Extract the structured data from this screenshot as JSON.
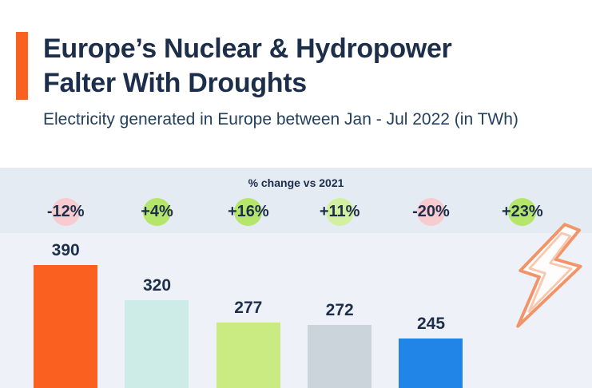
{
  "header": {
    "title_line1": "Europe’s Nuclear & Hydropower",
    "title_line2": "Falter With Droughts",
    "subtitle": "Electricity generated in Europe between Jan - Jul 2022 (in TWh)"
  },
  "colors": {
    "accent_orange": "#fa6121",
    "title_navy": "#1d2e4a",
    "band_bg": "#e5ebf3",
    "chart_bg": "#eef2f8"
  },
  "chart_data": {
    "type": "bar",
    "title": "Europe’s Nuclear & Hydropower Falter With Droughts",
    "subtitle": "Electricity generated in Europe between Jan - Jul 2022 (in TWh)",
    "unit": "TWh",
    "pct_band_label": "% change vs 2021",
    "pct_changes": [
      "-12%",
      "+4%",
      "+16%",
      "+11%",
      "-20%",
      "+23%"
    ],
    "bars": [
      {
        "value": 390,
        "pct": "-12%",
        "badge_color": "#f7cbcf",
        "color": "#fa6121"
      },
      {
        "value": 320,
        "pct": "+4%",
        "badge_color": "#b5e56a",
        "color": "#cdece7"
      },
      {
        "value": 277,
        "pct": "+16%",
        "badge_color": "#b5e56a",
        "color": "#c9eb82"
      },
      {
        "value": 272,
        "pct": "+11%",
        "badge_color": "#d3efa0",
        "color": "#cbd3db"
      },
      {
        "value": 245,
        "pct": "-20%",
        "badge_color": "#f7cbcf",
        "color": "#2185e8"
      },
      {
        "value": null,
        "pct": "+23%",
        "badge_color": "#b5e56a",
        "color": null
      }
    ],
    "legend_position": "none",
    "grid": false
  },
  "decor": {
    "lightning_icon": "lightning-bolt"
  }
}
